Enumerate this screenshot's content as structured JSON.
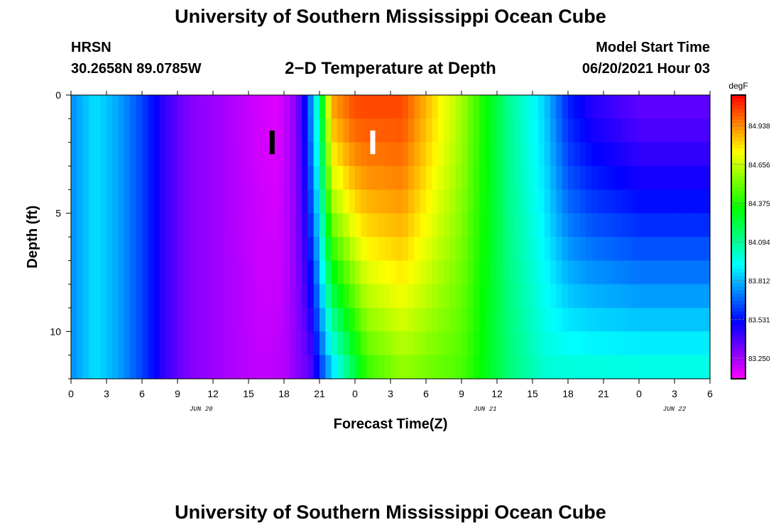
{
  "header": {
    "title": "University of Southern Mississippi Ocean Cube",
    "station": "HRSN",
    "coordinates": "30.2658N  89.0785W",
    "subtitle": "2−D Temperature at Depth",
    "model_start_label": "Model Start Time",
    "model_start_value": "06/20/2021 Hour 03"
  },
  "footer": {
    "title": "University of Southern Mississippi Ocean Cube"
  },
  "chart_data": {
    "type": "heatmap",
    "title": "2−D Temperature at Depth",
    "xlabel": "Forecast Time(Z)",
    "ylabel": "Depth (ft)",
    "x_ticks": [
      "0",
      "3",
      "6",
      "9",
      "12",
      "15",
      "18",
      "21",
      "0",
      "3",
      "6",
      "9",
      "12",
      "15",
      "18",
      "21",
      "0",
      "3",
      "6"
    ],
    "x_range_hours": [
      0,
      54
    ],
    "date_labels": [
      {
        "hour": 11,
        "label": "JUN 20"
      },
      {
        "hour": 35,
        "label": "JUN 21"
      },
      {
        "hour": 51,
        "label": "JUN 22"
      }
    ],
    "y_ticks": [
      "0",
      "5",
      "10"
    ],
    "y_range_ft": [
      0,
      12
    ],
    "y_tick_values": [
      0,
      5,
      10
    ],
    "colorbar": {
      "unit": "degF",
      "labels": [
        "84.938",
        "84.656",
        "84.375",
        "84.094",
        "83.812",
        "83.531",
        "83.250"
      ],
      "label_values": [
        84.938,
        84.656,
        84.375,
        84.094,
        83.812,
        83.531,
        83.25
      ],
      "range": [
        83.1,
        85.16
      ]
    },
    "markers": [
      {
        "hour": 17,
        "depth_top": 1.5,
        "depth_bottom": 2.5,
        "color": "#000000"
      },
      {
        "hour": 25.5,
        "depth_top": 1.5,
        "depth_bottom": 2.5,
        "color": "#ffffff"
      }
    ],
    "temperature_profile_surface": {
      "hours": [
        0,
        2,
        4,
        6,
        8,
        10,
        13,
        16,
        17.5,
        18.7,
        19.5,
        20.2,
        21,
        22,
        24,
        28,
        33,
        37,
        40,
        42,
        44,
        46,
        48,
        54
      ],
      "values_degF": [
        83.74,
        83.88,
        83.78,
        83.62,
        83.42,
        83.3,
        83.24,
        83.17,
        83.15,
        83.25,
        83.4,
        83.7,
        84.1,
        84.9,
        85.05,
        85.05,
        84.6,
        84.1,
        83.85,
        83.56,
        83.45,
        83.4,
        83.35,
        83.35
      ]
    },
    "temperature_profile_bottom": {
      "hours": [
        0,
        2,
        4,
        6,
        8,
        10,
        13,
        16,
        18,
        20.2,
        21,
        22,
        23.5,
        25,
        28,
        33,
        37,
        40,
        42,
        46,
        48,
        54
      ],
      "values_degF": [
        83.74,
        83.88,
        83.78,
        83.62,
        83.42,
        83.3,
        83.24,
        83.2,
        83.22,
        83.35,
        83.55,
        83.8,
        84.1,
        84.4,
        84.55,
        84.45,
        84.15,
        84.0,
        84.0,
        84.0,
        84.0,
        84.0
      ]
    }
  }
}
